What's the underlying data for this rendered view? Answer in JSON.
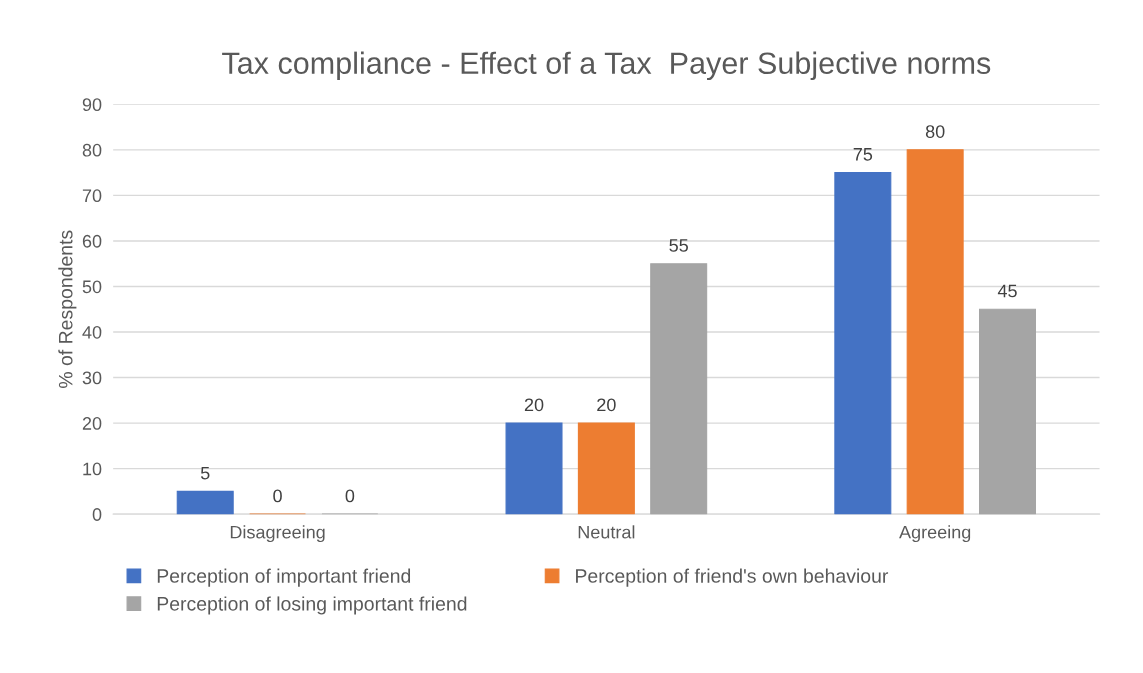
{
  "chart_data": {
    "type": "bar",
    "title": "Tax compliance - Effect of a Tax  Payer Subjective norms",
    "ylabel": "% of Respondents",
    "categories": [
      "Disagreeing",
      "Neutral",
      "Agreeing"
    ],
    "series": [
      {
        "name": "Perception of important friend",
        "color": "#4472c4",
        "values": [
          5,
          20,
          75
        ]
      },
      {
        "name": "Perception of friend's own behaviour",
        "color": "#ed7d31",
        "values": [
          0,
          20,
          80
        ]
      },
      {
        "name": "Perception of losing important friend",
        "color": "#a5a5a5",
        "values": [
          0,
          55,
          45
        ]
      }
    ],
    "ylim": [
      0,
      90
    ],
    "yticks": [
      0,
      10,
      20,
      30,
      40,
      50,
      60,
      70,
      80,
      90
    ],
    "grid": "y",
    "legend": "bottom",
    "data_labels": true
  }
}
